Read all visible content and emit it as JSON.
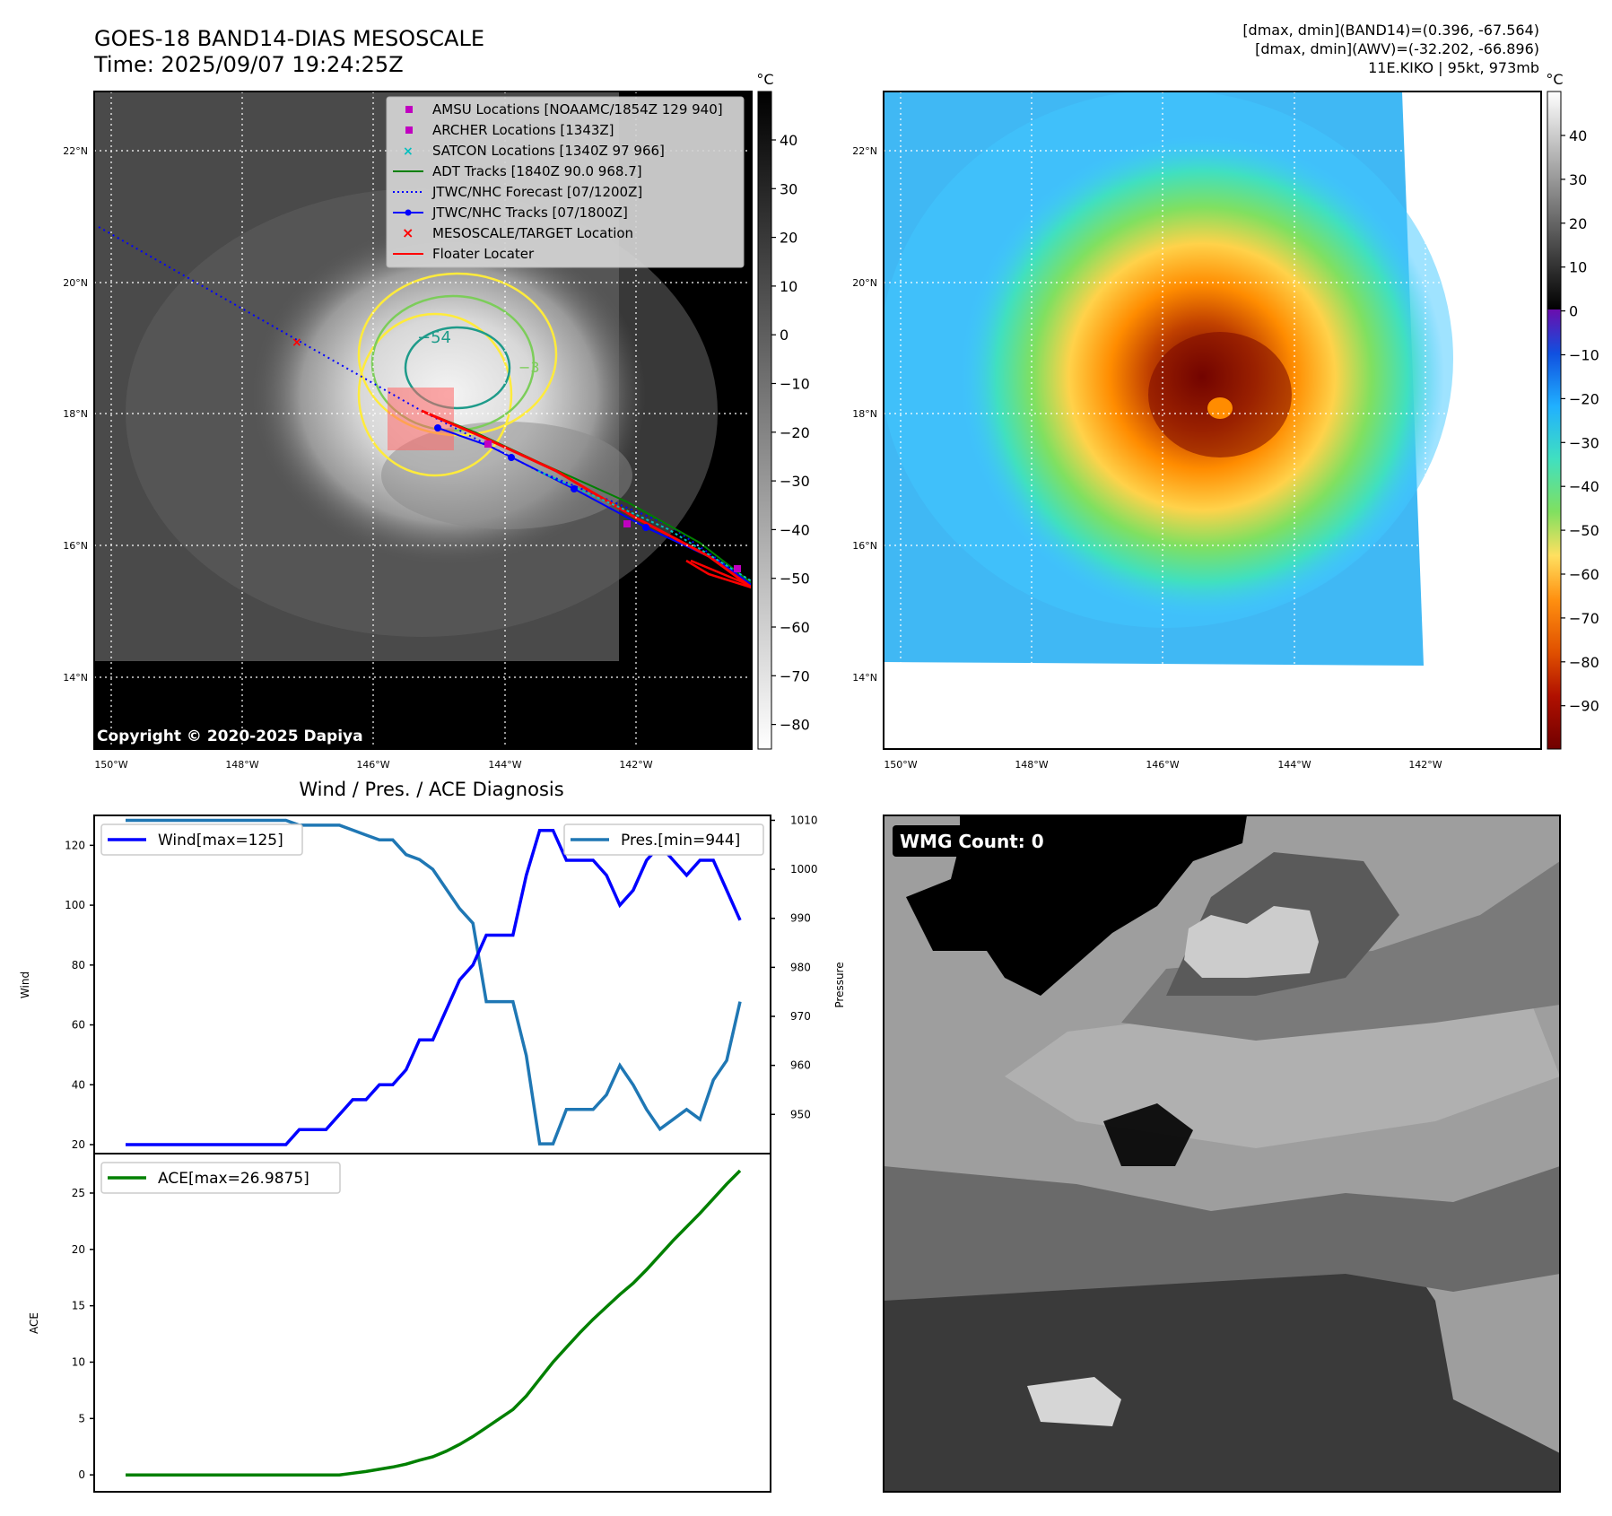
{
  "header": {
    "title_line1": "GOES-18 BAND14-DIAS MESOSCALE",
    "title_line2": "Time: 2025/09/07 19:24:25Z",
    "info_line1": "[dmax, dmin](BAND14)=(0.396, -67.564)",
    "info_line2": "[dmax, dmin](AWV)=(-32.202, -66.896)",
    "info_line3": "11E.KIKO | 95kt, 973mb"
  },
  "maps": {
    "lon_labels": [
      "150°W",
      "148°W",
      "146°W",
      "144°W",
      "142°W"
    ],
    "lat_labels": [
      "22°N",
      "20°N",
      "18°N",
      "16°N",
      "14°N"
    ],
    "copyright": "Copyright © 2020-2025 Dapiya",
    "contour_label_1": "−54",
    "contour_label_2": "−3"
  },
  "legend": {
    "items": [
      {
        "label": "AMSU Locations [NOAAMC/1854Z 129 940]",
        "color": "#c000c0"
      },
      {
        "label": "ARCHER Locations [1343Z]",
        "color": "#c000c0"
      },
      {
        "label": "SATCON Locations [1340Z 97 966]",
        "color": "#00bfbf"
      },
      {
        "label": "ADT Tracks [1840Z 90.0 968.7]",
        "color": "#008000"
      },
      {
        "label": "JTWC/NHC Forecast [07/1200Z]",
        "color": "#0000ff"
      },
      {
        "label": "JTWC/NHC Tracks [07/1800Z]",
        "color": "#0000ff"
      },
      {
        "label": "MESOSCALE/TARGET Location",
        "color": "#ff0000"
      },
      {
        "label": "Floater Locater",
        "color": "#ff0000"
      }
    ]
  },
  "colorbar1": {
    "unit": "°C",
    "ticks": [
      "40",
      "30",
      "20",
      "10",
      "0",
      "−10",
      "−20",
      "−30",
      "−40",
      "−50",
      "−60",
      "−70",
      "−80"
    ]
  },
  "colorbar2": {
    "unit": "°C",
    "ticks": [
      "40",
      "30",
      "20",
      "10",
      "0",
      "−10",
      "−20",
      "−30",
      "−40",
      "−50",
      "−60",
      "−70",
      "−80",
      "−90"
    ]
  },
  "wmg": {
    "label": "WMG Count: 0"
  },
  "chart_data": [
    {
      "type": "line",
      "title": "Wind / Pres. / ACE Diagnosis",
      "ylabel": "Wind",
      "ylim": [
        17,
        130
      ],
      "yticks": [
        "20",
        "40",
        "60",
        "80",
        "100",
        "120"
      ],
      "series": [
        {
          "name": "Wind[max=125]",
          "color": "#0000ff",
          "values": [
            20,
            20,
            20,
            20,
            20,
            20,
            20,
            20,
            20,
            20,
            20,
            20,
            20,
            25,
            25,
            25,
            30,
            35,
            35,
            40,
            40,
            45,
            55,
            55,
            65,
            75,
            80,
            90,
            90,
            90,
            110,
            125,
            125,
            115,
            115,
            115,
            110,
            100,
            105,
            115,
            120,
            115,
            110,
            115,
            115,
            105,
            95
          ]
        }
      ]
    },
    {
      "type": "line",
      "ylabel": "Pressure",
      "ylim": [
        942,
        1011
      ],
      "yticks": [
        "950",
        "960",
        "970",
        "980",
        "990",
        "1000",
        "1010"
      ],
      "series": [
        {
          "name": "Pres.[min=944]",
          "color": "#1f77b4",
          "values": [
            1010,
            1010,
            1010,
            1010,
            1010,
            1010,
            1010,
            1010,
            1010,
            1010,
            1010,
            1010,
            1010,
            1009,
            1009,
            1009,
            1009,
            1008,
            1007,
            1006,
            1006,
            1003,
            1002,
            1000,
            996,
            992,
            989,
            973,
            973,
            973,
            962,
            944,
            944,
            951,
            951,
            951,
            954,
            960,
            956,
            951,
            947,
            949,
            951,
            949,
            957,
            961,
            973
          ]
        }
      ]
    },
    {
      "type": "line",
      "ylabel": "ACE",
      "ylim": [
        -1.5,
        28.5
      ],
      "yticks": [
        "0",
        "5",
        "10",
        "15",
        "20",
        "25"
      ],
      "series": [
        {
          "name": "ACE[max=26.9875]",
          "color": "#008000",
          "values": [
            0,
            0,
            0,
            0,
            0,
            0,
            0,
            0,
            0,
            0,
            0,
            0,
            0,
            0,
            0,
            0,
            0,
            0.15,
            0.3,
            0.5,
            0.7,
            0.95,
            1.3,
            1.6,
            2.1,
            2.7,
            3.4,
            4.2,
            5.0,
            5.8,
            7.0,
            8.5,
            10.0,
            11.3,
            12.6,
            13.8,
            14.9,
            16.0,
            17.0,
            18.2,
            19.5,
            20.8,
            22.0,
            23.2,
            24.5,
            25.8,
            26.99
          ]
        }
      ]
    }
  ]
}
